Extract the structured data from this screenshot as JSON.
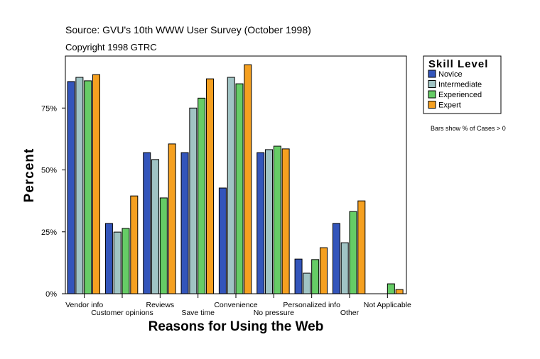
{
  "chart_data": {
    "type": "bar",
    "source": "Source: GVU's 10th WWW User Survey (October 1998)",
    "copyright": "Copyright 1998 GTRC",
    "y_label": "Percent",
    "x_label": "Reasons for Using the Web",
    "legend_title": "Skill Level",
    "note": "Bars show % of Cases > 0",
    "categories": [
      "Vendor info",
      "Customer opinions",
      "Reviews",
      "Save time",
      "Convenience",
      "No pressure",
      "Personalized info",
      "Other",
      "Not Applicable"
    ],
    "series": [
      {
        "name": "Novice",
        "color": "#3355bb",
        "values": [
          85.7,
          28.4,
          57,
          57,
          42.7,
          57,
          14,
          28.4,
          null
        ]
      },
      {
        "name": "Intermediate",
        "color": "#a0c4c4",
        "values": [
          87.4,
          24.9,
          54.2,
          75,
          87.4,
          58.2,
          8.3,
          20.6,
          null
        ]
      },
      {
        "name": "Experienced",
        "color": "#66cc66",
        "values": [
          86,
          26.4,
          38.7,
          79,
          84.8,
          59.6,
          13.8,
          33.2,
          4
        ]
      },
      {
        "name": "Expert",
        "color": "#f5a020",
        "values": [
          88.5,
          39.5,
          60.5,
          86.8,
          92.5,
          58.5,
          18.6,
          37.5,
          1.7
        ]
      }
    ],
    "ylim": [
      0,
      96
    ],
    "yticks": [
      {
        "value": 0,
        "label": "0%"
      },
      {
        "value": 25,
        "label": "25%"
      },
      {
        "value": 50,
        "label": "50%"
      },
      {
        "value": 75,
        "label": "75%"
      }
    ],
    "legend_position": "right"
  }
}
